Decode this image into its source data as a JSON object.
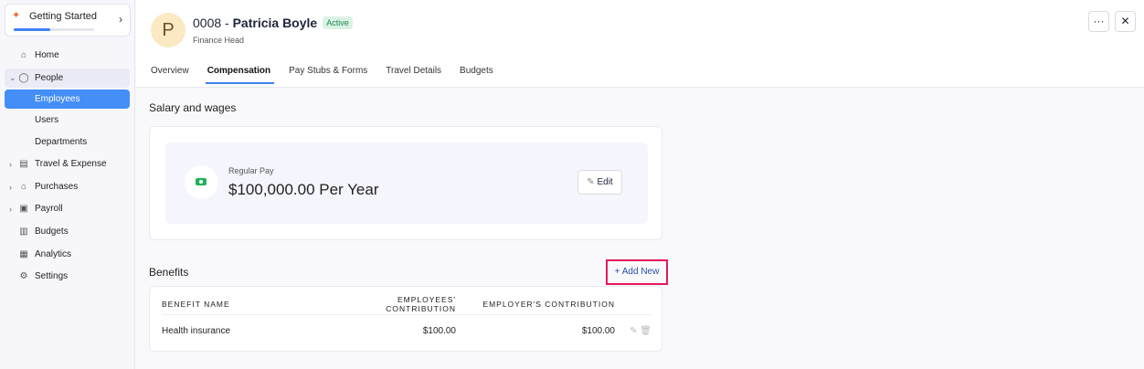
{
  "sidebar": {
    "getting_started": {
      "label": "Getting Started",
      "progress": 0.45
    },
    "items": [
      {
        "label": "Home",
        "icon": "home-icon"
      },
      {
        "label": "People",
        "icon": "user-circle-icon",
        "expanded": true
      },
      {
        "label": "Employees",
        "active": true
      },
      {
        "label": "Users"
      },
      {
        "label": "Departments"
      },
      {
        "label": "Travel & Expense",
        "icon": "document-icon"
      },
      {
        "label": "Purchases",
        "icon": "bag-icon"
      },
      {
        "label": "Payroll",
        "icon": "payroll-icon"
      },
      {
        "label": "Budgets",
        "icon": "budget-icon"
      },
      {
        "label": "Analytics",
        "icon": "chart-icon"
      },
      {
        "label": "Settings",
        "icon": "gear-icon"
      }
    ]
  },
  "header": {
    "avatar_initial": "P",
    "employee_id": "0008 - ",
    "name": "Patricia Boyle",
    "status": "Active",
    "role": "Finance Head",
    "more": "···",
    "close": "✕"
  },
  "tabs": [
    "Overview",
    "Compensation",
    "Pay Stubs & Forms",
    "Travel Details",
    "Budgets"
  ],
  "active_tab": "Compensation",
  "salary": {
    "title": "Salary and wages",
    "label": "Regular Pay",
    "value": "$100,000.00 Per Year",
    "edit": "Edit"
  },
  "benefits": {
    "title": "Benefits",
    "add_new": "Add New",
    "columns": [
      "BENEFIT NAME",
      "EMPLOYEES' CONTRIBUTION",
      "EMPLOYER'S CONTRIBUTION"
    ],
    "rows": [
      {
        "name": "Health insurance",
        "employee": "$100.00",
        "employer": "$100.00"
      }
    ]
  },
  "colors": {
    "accent": "#3e82f7",
    "highlight": "#e4195a",
    "status": "#1f8a4c"
  }
}
